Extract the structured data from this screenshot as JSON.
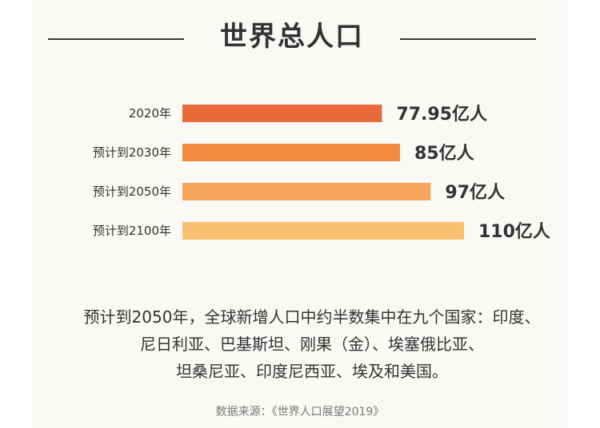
{
  "title": "世界总人口",
  "chart_data": {
    "type": "bar",
    "orientation": "horizontal",
    "categories": [
      "2020年",
      "预计到2030年",
      "预计到2050年",
      "预计到2100年"
    ],
    "values": [
      77.95,
      85,
      97,
      110
    ],
    "value_labels": [
      "77.95亿人",
      "85亿人",
      "97亿人",
      "110亿人"
    ],
    "unit": "亿人",
    "colors": [
      "#e8693a",
      "#f08a3e",
      "#f5a55a",
      "#f8c070"
    ],
    "grid": false
  },
  "note": "预计到2050年，全球新增人口中约半数集中在九个国家：印度、尼日利亚、巴基斯坦、刚果（金）、埃塞俄比亚、坦桑尼亚、印度尼西亚、埃及和美国。",
  "note_lines": [
    "预计到2050年，全球新增人口中约半数集中在九个国家：印度、",
    "尼日利亚、巴基斯坦、刚果（金）、埃塞俄比亚、",
    "坦桑尼亚、印度尼西亚、埃及和美国。"
  ],
  "source": "数据来源：《世界人口展望2019》"
}
